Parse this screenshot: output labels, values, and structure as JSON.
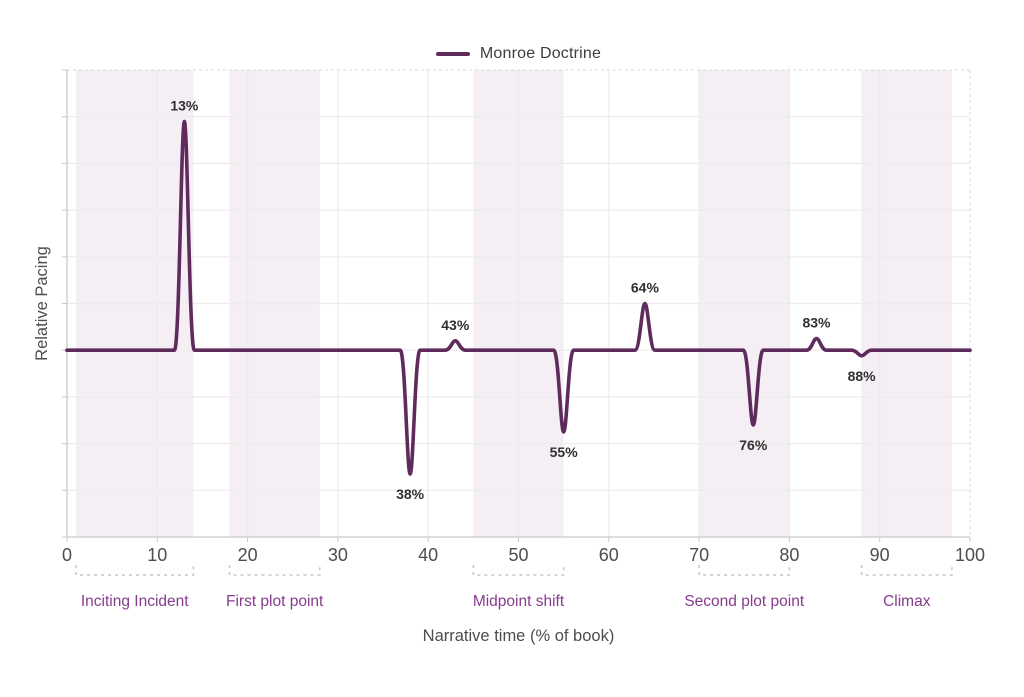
{
  "legend": {
    "items": [
      {
        "label": "Monroe Doctrine"
      }
    ]
  },
  "chart_data": {
    "type": "line",
    "title": "",
    "xlabel": "Narrative time (% of book)",
    "ylabel": "Relative Pacing",
    "xlim": [
      0,
      100
    ],
    "ylim": [
      -4,
      6
    ],
    "x_ticks": [
      0,
      10,
      20,
      30,
      40,
      50,
      60,
      70,
      80,
      90,
      100
    ],
    "y_ticks_shown": false,
    "grid": true,
    "legend_position": "top-center",
    "series": [
      {
        "name": "Monroe Doctrine",
        "color": "#5e2b5c",
        "baseline_value": 0,
        "spike_half_width": 1.1,
        "spikes": [
          {
            "x": 13,
            "value": 4.9,
            "label": "13%",
            "label_position": "above"
          },
          {
            "x": 38,
            "value": -2.65,
            "label": "38%",
            "label_position": "below"
          },
          {
            "x": 43,
            "value": 0.2,
            "label": "43%",
            "label_position": "above"
          },
          {
            "x": 55,
            "value": -1.75,
            "label": "55%",
            "label_position": "below"
          },
          {
            "x": 64,
            "value": 1.0,
            "label": "64%",
            "label_position": "above"
          },
          {
            "x": 76,
            "value": -1.6,
            "label": "76%",
            "label_position": "below"
          },
          {
            "x": 83,
            "value": 0.25,
            "label": "83%",
            "label_position": "above"
          },
          {
            "x": 88,
            "value": -0.12,
            "label": "88%",
            "label_position": "below"
          }
        ]
      }
    ],
    "story_beats": [
      {
        "label": "Inciting Incident",
        "from": 1,
        "to": 14
      },
      {
        "label": "First plot point",
        "from": 18,
        "to": 28
      },
      {
        "label": "Midpoint shift",
        "from": 45,
        "to": 55
      },
      {
        "label": "Second plot point",
        "from": 70,
        "to": 80
      },
      {
        "label": "Climax",
        "from": 88,
        "to": 98
      }
    ],
    "style": {
      "series_color": "#5e2b5c",
      "band_fill": "#f5eef5",
      "gridline_color": "#ececec",
      "axis_line_color": "#c9c9c9",
      "dashed_border_color": "#d9d9d9",
      "bracket_color": "#c6c6c6",
      "tick_label_color": "#4d4d4d",
      "axis_title_color": "#4d4d4d",
      "point_label_color": "#303030",
      "beat_label_color": "#873c8c",
      "legend_text_color": "#3d3d3d",
      "background": "#ffffff"
    }
  }
}
